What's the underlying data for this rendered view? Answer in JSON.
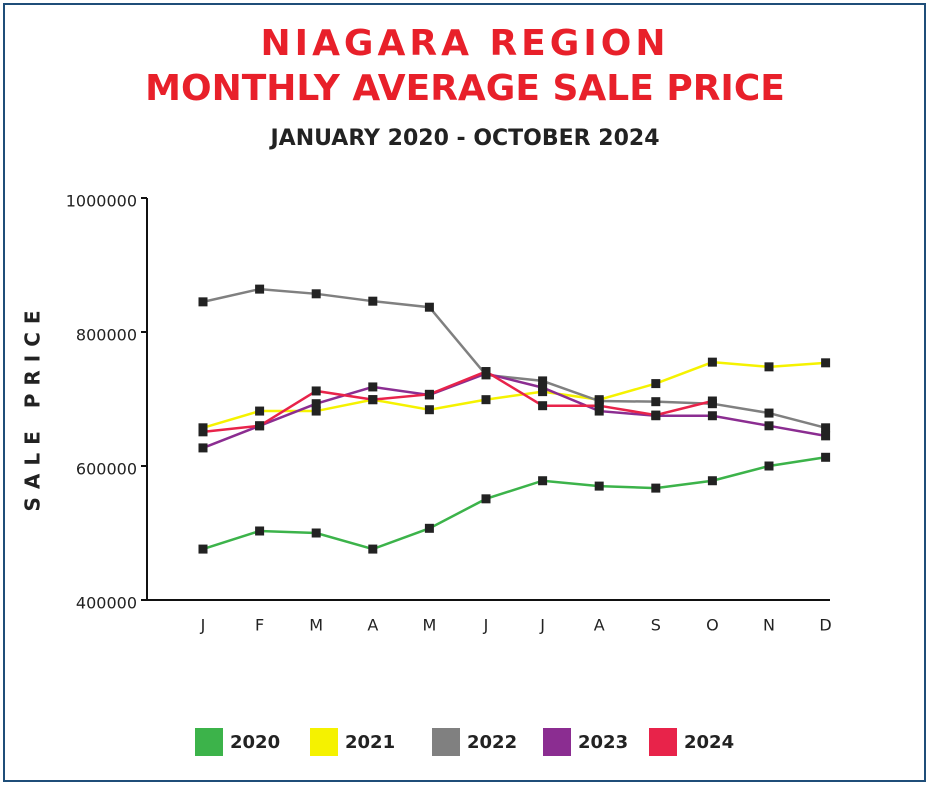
{
  "chart_data": {
    "type": "line",
    "title": "NIAGARA REGION",
    "title_line2": "MONTHLY AVERAGE SALE PRICE",
    "subtitle": "JANUARY 2020 - OCTOBER 2024",
    "y_label": "SALE PRICE",
    "categories": [
      "J",
      "F",
      "M",
      "A",
      "M",
      "J",
      "J",
      "A",
      "S",
      "O",
      "N",
      "D"
    ],
    "ylim": [
      400000,
      1000000
    ],
    "yticks": [
      400000,
      600000,
      800000,
      1000000
    ],
    "legend": "bottom",
    "series": [
      {
        "name": "2020",
        "color": "#3cb34a",
        "values": [
          476000,
          503000,
          500000,
          476000,
          507000,
          551000,
          578000,
          570000,
          567000,
          578000,
          600000,
          613000
        ]
      },
      {
        "name": "2021",
        "color": "#f5f200",
        "values": [
          657000,
          682000,
          682000,
          699000,
          684000,
          699000,
          711000,
          699000,
          723000,
          755000,
          748000,
          754000
        ]
      },
      {
        "name": "2022",
        "color": "#808080",
        "values": [
          845000,
          864000,
          857000,
          846000,
          837000,
          736000,
          727000,
          697000,
          696000,
          693000,
          679000,
          657000
        ]
      },
      {
        "name": "2023",
        "color": "#8b2d91",
        "values": [
          627000,
          660000,
          693000,
          718000,
          706000,
          738000,
          717000,
          682000,
          675000,
          675000,
          660000,
          645000
        ]
      },
      {
        "name": "2024",
        "color": "#e8234a",
        "values": [
          651000,
          660000,
          712000,
          699000,
          707000,
          741000,
          690000,
          690000,
          676000,
          697000,
          null,
          null
        ]
      }
    ]
  }
}
